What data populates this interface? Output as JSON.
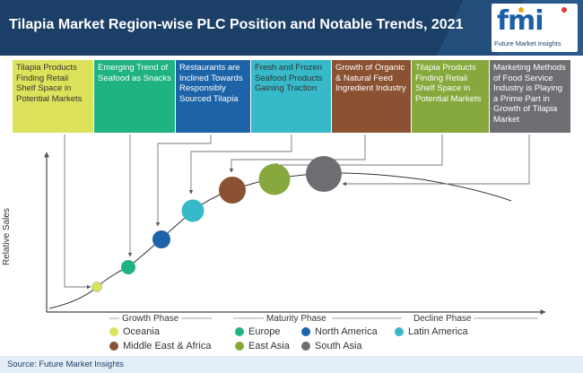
{
  "title": "Tilapia Market Region-wise PLC Position and Notable Trends, 2021",
  "logo": {
    "mark": "fmi",
    "subtitle": "Future Market Insights"
  },
  "trends": [
    {
      "text": "Tilapia Products Finding Retail Shelf Space in Potential Markets",
      "color": "#dce35b"
    },
    {
      "text": "Emerging Trend of Seafood as Snacks",
      "color": "#1fb283"
    },
    {
      "text": "Restaurants are Inclined Towards Responsibly Sourced Tilapia",
      "color": "#1c63a8"
    },
    {
      "text": "Fresh and Frozen Seafood Products Gaining Traction",
      "color": "#36b9c9"
    },
    {
      "text": "Growth of Organic & Natural Feed Ingredient Industry",
      "color": "#8a5233"
    },
    {
      "text": "Tilapia Products Finding Retail Shelf Space in Potential Markets",
      "color": "#86a83c"
    },
    {
      "text": "Marketing Methods of Food Service Industry is Playing a Prime Part in Growth of Tilapia Market",
      "color": "#6d6e71"
    }
  ],
  "axis": {
    "ylabel": "Relative Sales"
  },
  "phases": [
    "Growth Phase",
    "Maturity Phase",
    "Decline Phase"
  ],
  "legend": [
    {
      "label": "Oceania",
      "color": "#dce35b"
    },
    {
      "label": "Europe",
      "color": "#1fb283"
    },
    {
      "label": "North America",
      "color": "#1c63a8"
    },
    {
      "label": "Latin America",
      "color": "#36b9c9"
    },
    {
      "label": "Middle East & Africa",
      "color": "#8a5233"
    },
    {
      "label": "East Asia",
      "color": "#86a83c"
    },
    {
      "label": "South Asia",
      "color": "#6d6e71"
    }
  ],
  "footer": "Source: Future Market Insights"
}
